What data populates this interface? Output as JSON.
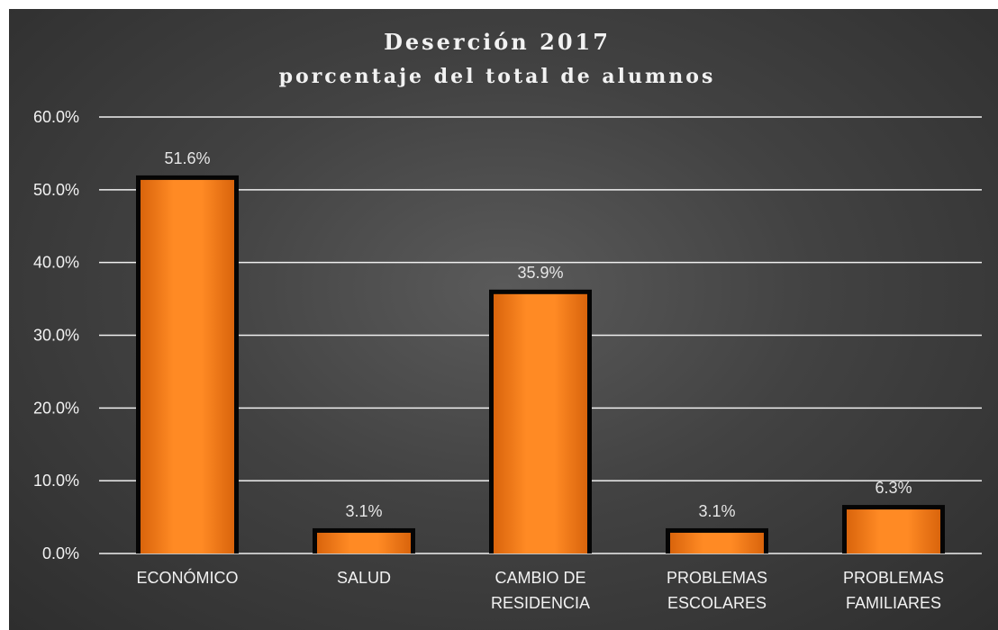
{
  "chart_data": {
    "type": "bar",
    "title": "Deserción 2017",
    "subtitle": "porcentaje del total de alumnos",
    "categories": [
      [
        "ECONÓMICO"
      ],
      [
        "SALUD"
      ],
      [
        "CAMBIO DE",
        "RESIDENCIA"
      ],
      [
        "PROBLEMAS",
        "ESCOLARES"
      ],
      [
        "PROBLEMAS",
        "FAMILIARES"
      ]
    ],
    "values": [
      51.6,
      3.1,
      35.9,
      3.1,
      6.3
    ],
    "data_labels": [
      "51.6%",
      "3.1%",
      "35.9%",
      "3.1%",
      "6.3%"
    ],
    "ylim": [
      0,
      60
    ],
    "yticks": [
      "0.0%",
      "10.0%",
      "20.0%",
      "30.0%",
      "40.0%",
      "50.0%",
      "60.0%"
    ],
    "grid": true,
    "colors": {
      "bar_fill": "#f57e1e",
      "bar_outline": "#050505",
      "text": "#f2f2f2"
    }
  }
}
